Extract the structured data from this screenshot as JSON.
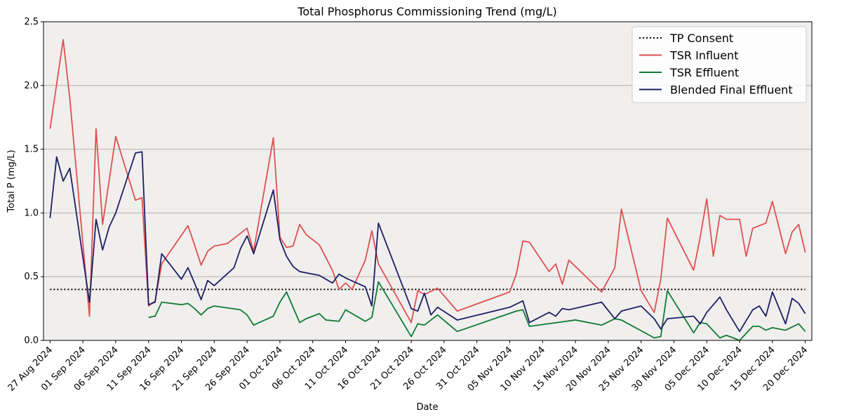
{
  "chart_data": {
    "type": "line",
    "title": "Total Phosphorus Commissioning Trend (mg/L)",
    "x_label": "Date",
    "y_label": "Total P (mg/L)",
    "xlim": [
      "2024-08-26",
      "2024-12-21"
    ],
    "ylim": [
      0,
      2.5
    ],
    "yticks": [
      {
        "value": 0,
        "label": "0.0"
      },
      0.5,
      {
        "value": 1,
        "label": "1.0"
      },
      1.5,
      {
        "value": 2,
        "label": "2.0"
      },
      2.5
    ],
    "xticks": [
      {
        "value": "2024-08-27",
        "label": "27 Aug 2024"
      },
      {
        "value": "2024-09-01",
        "label": "01 Sep 2024"
      },
      {
        "value": "2024-09-06",
        "label": "06 Sep 2024"
      },
      {
        "value": "2024-09-11",
        "label": "11 Sep 2024"
      },
      {
        "value": "2024-09-16",
        "label": "16 Sep 2024"
      },
      {
        "value": "2024-09-21",
        "label": "21 Sep 2024"
      },
      {
        "value": "2024-09-26",
        "label": "26 Sep 2024"
      },
      {
        "value": "2024-10-01",
        "label": "01 Oct 2024"
      },
      {
        "value": "2024-10-06",
        "label": "06 Oct 2024"
      },
      {
        "value": "2024-10-11",
        "label": "11 Oct 2024"
      },
      {
        "value": "2024-10-16",
        "label": "16 Oct 2024"
      },
      {
        "value": "2024-10-21",
        "label": "21 Oct 2024"
      },
      {
        "value": "2024-10-26",
        "label": "26 Oct 2024"
      },
      {
        "value": "2024-10-31",
        "label": "31 Oct 2024"
      },
      {
        "value": "2024-11-05",
        "label": "05 Nov 2024"
      },
      {
        "value": "2024-11-10",
        "label": "10 Nov 2024"
      },
      {
        "value": "2024-11-15",
        "label": "15 Nov 2024"
      },
      {
        "value": "2024-11-20",
        "label": "20 Nov 2024"
      },
      {
        "value": "2024-11-25",
        "label": "25 Nov 2024"
      },
      {
        "value": "2024-11-30",
        "label": "30 Nov 2024"
      },
      {
        "value": "2024-12-05",
        "label": "05 Dec 2024"
      },
      {
        "value": "2024-12-10",
        "label": "10 Dec 2024"
      },
      {
        "value": "2024-12-15",
        "label": "15 Dec 2024"
      },
      {
        "value": "2024-12-20",
        "label": "20 Dec 2024"
      }
    ],
    "grid": "y",
    "legend": "upper right",
    "series": [
      {
        "name": "TP Consent",
        "color": "#000000",
        "linestyle": "dotted",
        "x": [
          "2024-08-27",
          "2024-12-20"
        ],
        "values": [
          0.4,
          0.4
        ]
      },
      {
        "name": "TSR Influent",
        "color": "#e05050",
        "linestyle": "solid",
        "x": [
          "2024-08-27",
          "2024-08-29",
          "2024-08-30",
          "2024-09-02",
          "2024-09-03",
          "2024-09-04",
          "2024-09-06",
          "2024-09-09",
          "2024-09-10",
          "2024-09-11",
          "2024-09-12",
          "2024-09-13",
          "2024-09-17",
          "2024-09-18",
          "2024-09-19",
          "2024-09-20",
          "2024-09-21",
          "2024-09-23",
          "2024-09-24",
          "2024-09-25",
          "2024-09-26",
          "2024-09-27",
          "2024-09-30",
          "2024-10-01",
          "2024-10-02",
          "2024-10-03",
          "2024-10-04",
          "2024-10-05",
          "2024-10-07",
          "2024-10-08",
          "2024-10-09",
          "2024-10-10",
          "2024-10-11",
          "2024-10-12",
          "2024-10-14",
          "2024-10-15",
          "2024-10-16",
          "2024-10-21",
          "2024-10-22",
          "2024-10-23",
          "2024-10-25",
          "2024-10-28",
          "2024-11-05",
          "2024-11-06",
          "2024-11-07",
          "2024-11-08",
          "2024-11-11",
          "2024-11-12",
          "2024-11-13",
          "2024-11-14",
          "2024-11-19",
          "2024-11-21",
          "2024-11-22",
          "2024-11-25",
          "2024-11-27",
          "2024-11-28",
          "2024-11-29",
          "2024-12-03",
          "2024-12-04",
          "2024-12-05",
          "2024-12-06",
          "2024-12-07",
          "2024-12-08",
          "2024-12-10",
          "2024-12-11",
          "2024-12-12",
          "2024-12-14",
          "2024-12-15",
          "2024-12-17",
          "2024-12-18",
          "2024-12-19",
          "2024-12-20"
        ],
        "values": [
          1.66,
          2.36,
          1.9,
          0.19,
          1.66,
          0.91,
          1.6,
          1.1,
          1.12,
          0.27,
          0.31,
          0.6,
          0.9,
          0.75,
          0.59,
          0.7,
          0.74,
          0.76,
          0.8,
          0.84,
          0.88,
          0.7,
          1.59,
          0.81,
          0.73,
          0.74,
          0.91,
          0.83,
          0.75,
          0.65,
          0.55,
          0.4,
          0.45,
          0.4,
          0.63,
          0.86,
          0.6,
          0.14,
          0.39,
          0.36,
          0.41,
          0.23,
          0.38,
          0.52,
          0.78,
          0.77,
          0.54,
          0.6,
          0.44,
          0.63,
          0.38,
          0.57,
          1.03,
          0.39,
          0.22,
          0.48,
          0.96,
          0.55,
          0.81,
          1.11,
          0.66,
          0.98,
          0.95,
          0.95,
          0.66,
          0.88,
          0.92,
          1.09,
          0.68,
          0.85,
          0.91,
          0.69
        ]
      },
      {
        "name": "TSR Effluent",
        "color": "#117a35",
        "linestyle": "solid",
        "x": [
          "2024-09-11",
          "2024-09-12",
          "2024-09-13",
          "2024-09-16",
          "2024-09-17",
          "2024-09-18",
          "2024-09-19",
          "2024-09-20",
          "2024-09-21",
          "2024-09-25",
          "2024-09-26",
          "2024-09-27",
          "2024-09-30",
          "2024-10-01",
          "2024-10-02",
          "2024-10-03",
          "2024-10-04",
          "2024-10-05",
          "2024-10-07",
          "2024-10-08",
          "2024-10-10",
          "2024-10-11",
          "2024-10-14",
          "2024-10-15",
          "2024-10-16",
          "2024-10-21",
          "2024-10-22",
          "2024-10-23",
          "2024-10-25",
          "2024-10-28",
          "2024-11-06",
          "2024-11-07",
          "2024-11-08",
          "2024-11-15",
          "2024-11-19",
          "2024-11-21",
          "2024-11-22",
          "2024-11-27",
          "2024-11-28",
          "2024-11-29",
          "2024-12-03",
          "2024-12-04",
          "2024-12-05",
          "2024-12-07",
          "2024-12-08",
          "2024-12-10",
          "2024-12-12",
          "2024-12-13",
          "2024-12-14",
          "2024-12-15",
          "2024-12-17",
          "2024-12-19",
          "2024-12-20"
        ],
        "values": [
          0.18,
          0.19,
          0.3,
          0.28,
          0.29,
          0.25,
          0.2,
          0.25,
          0.27,
          0.24,
          0.2,
          0.12,
          0.19,
          0.3,
          0.38,
          0.26,
          0.14,
          0.17,
          0.21,
          0.16,
          0.15,
          0.24,
          0.15,
          0.18,
          0.46,
          0.03,
          0.13,
          0.12,
          0.2,
          0.07,
          0.23,
          0.24,
          0.11,
          0.16,
          0.12,
          0.17,
          0.16,
          0.02,
          0.03,
          0.39,
          0.06,
          0.14,
          0.13,
          0.02,
          0.04,
          0.0,
          0.11,
          0.11,
          0.08,
          0.1,
          0.08,
          0.13,
          0.07
        ]
      },
      {
        "name": "Blended Final Effluent",
        "color": "#1c1f66",
        "linestyle": "solid",
        "x": [
          "2024-08-27",
          "2024-08-28",
          "2024-08-29",
          "2024-08-30",
          "2024-09-02",
          "2024-09-03",
          "2024-09-04",
          "2024-09-05",
          "2024-09-06",
          "2024-09-09",
          "2024-09-10",
          "2024-09-11",
          "2024-09-12",
          "2024-09-13",
          "2024-09-16",
          "2024-09-17",
          "2024-09-18",
          "2024-09-19",
          "2024-09-20",
          "2024-09-21",
          "2024-09-24",
          "2024-09-25",
          "2024-09-26",
          "2024-09-27",
          "2024-09-30",
          "2024-10-01",
          "2024-10-02",
          "2024-10-03",
          "2024-10-04",
          "2024-10-07",
          "2024-10-08",
          "2024-10-09",
          "2024-10-10",
          "2024-10-11",
          "2024-10-14",
          "2024-10-15",
          "2024-10-16",
          "2024-10-21",
          "2024-10-22",
          "2024-10-23",
          "2024-10-24",
          "2024-10-25",
          "2024-10-28",
          "2024-11-05",
          "2024-11-07",
          "2024-11-08",
          "2024-11-11",
          "2024-11-12",
          "2024-11-13",
          "2024-11-14",
          "2024-11-19",
          "2024-11-21",
          "2024-11-22",
          "2024-11-25",
          "2024-11-27",
          "2024-11-28",
          "2024-11-29",
          "2024-12-03",
          "2024-12-04",
          "2024-12-05",
          "2024-12-07",
          "2024-12-08",
          "2024-12-10",
          "2024-12-12",
          "2024-12-13",
          "2024-12-14",
          "2024-12-15",
          "2024-12-17",
          "2024-12-18",
          "2024-12-19",
          "2024-12-20"
        ],
        "values": [
          0.96,
          1.44,
          1.25,
          1.35,
          0.3,
          0.95,
          0.71,
          0.89,
          1.0,
          1.47,
          1.48,
          0.28,
          0.3,
          0.68,
          0.48,
          0.57,
          0.45,
          0.32,
          0.47,
          0.43,
          0.57,
          0.72,
          0.82,
          0.68,
          1.18,
          0.79,
          0.66,
          0.58,
          0.54,
          0.51,
          0.48,
          0.45,
          0.52,
          0.49,
          0.42,
          0.27,
          0.92,
          0.25,
          0.23,
          0.37,
          0.2,
          0.26,
          0.16,
          0.26,
          0.31,
          0.14,
          0.22,
          0.19,
          0.25,
          0.24,
          0.3,
          0.17,
          0.23,
          0.27,
          0.17,
          0.09,
          0.17,
          0.19,
          0.13,
          0.22,
          0.34,
          0.24,
          0.07,
          0.24,
          0.27,
          0.19,
          0.38,
          0.13,
          0.33,
          0.29,
          0.21
        ]
      }
    ]
  }
}
